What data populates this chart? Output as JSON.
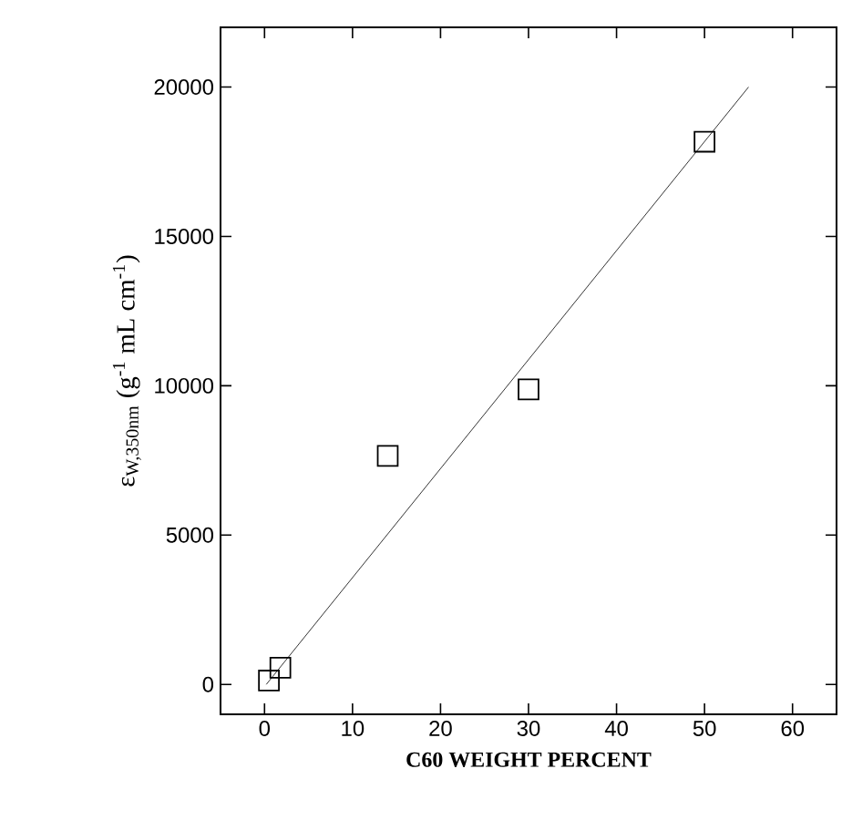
{
  "chart_data": {
    "type": "scatter",
    "xlabel": "C60 WEIGHT PERCENT",
    "ylabel": "ε$_{W,350nm}$ (g$^{-1}$ mL cm$^{-1}$)",
    "xlim": [
      -5,
      65
    ],
    "ylim": [
      -1000,
      22000
    ],
    "xticks": [
      0,
      10,
      20,
      30,
      40,
      50,
      60
    ],
    "yticks": [
      0,
      5000,
      10000,
      15000,
      20000
    ],
    "marker": "square",
    "grid": false,
    "series": [
      {
        "color": "#000000",
        "x": [
          0.5,
          1.8,
          14,
          30,
          50
        ],
        "values": [
          130,
          560,
          7650,
          9880,
          18170
        ]
      },
      {
        "type": "line",
        "marker": "none",
        "line_style": "solid",
        "color": "#000000",
        "x": [
          0.2,
          55
        ],
        "values": [
          0,
          20000
        ]
      }
    ]
  }
}
